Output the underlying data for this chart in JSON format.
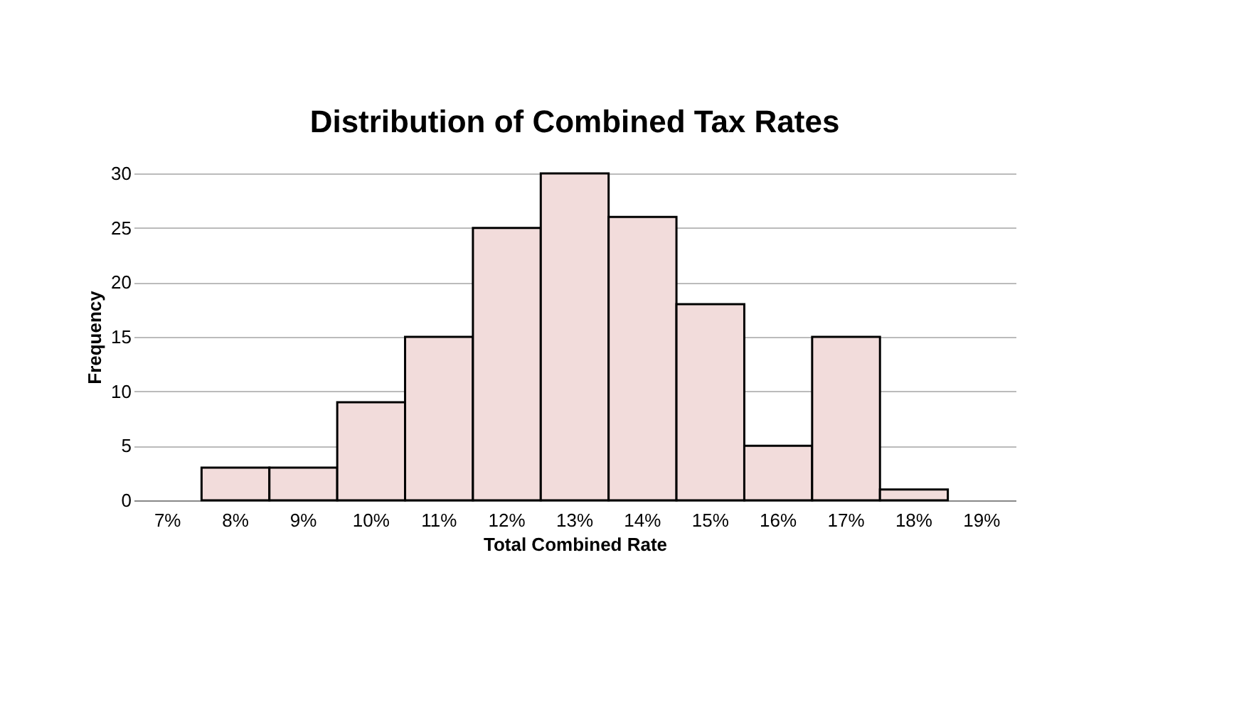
{
  "chart_data": {
    "type": "bar",
    "title": "Distribution of Combined Tax Rates",
    "xlabel": "Total Combined Rate",
    "ylabel": "Frequency",
    "categories": [
      "7%",
      "8%",
      "9%",
      "10%",
      "11%",
      "12%",
      "13%",
      "14%",
      "15%",
      "16%",
      "17%",
      "18%",
      "19%"
    ],
    "values": [
      0,
      3,
      3,
      9,
      15,
      25,
      30,
      26,
      18,
      5,
      15,
      1,
      0
    ],
    "color": "#f2dcdb",
    "ylim": [
      0,
      30
    ],
    "yticks": [
      0,
      5,
      10,
      15,
      20,
      25,
      30
    ],
    "grid": "y"
  }
}
